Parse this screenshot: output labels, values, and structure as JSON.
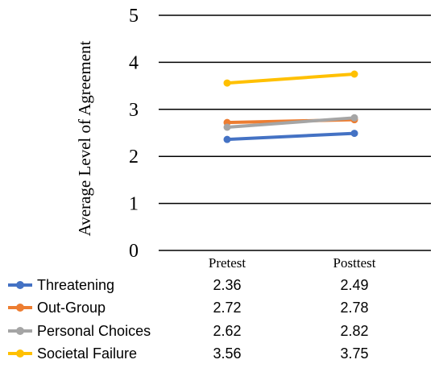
{
  "chart_data": {
    "type": "line",
    "categories": [
      "Pretest",
      "Posttest"
    ],
    "ylabel": "Average Level of Agreement",
    "xlabel": "",
    "ylim": [
      0,
      5
    ],
    "yticks": [
      "0",
      "1",
      "2",
      "3",
      "4",
      "5"
    ],
    "grid": true,
    "legend": "data-table-bottom",
    "series": [
      {
        "name": "Threatening",
        "values": [
          2.36,
          2.49
        ],
        "labels": [
          "2.36",
          "2.49"
        ],
        "color": "#4472C4"
      },
      {
        "name": "Out-Group",
        "values": [
          2.72,
          2.78
        ],
        "labels": [
          "2.72",
          "2.78"
        ],
        "color": "#ED7D31"
      },
      {
        "name": "Personal Choices",
        "values": [
          2.62,
          2.82
        ],
        "labels": [
          "2.62",
          "2.82"
        ],
        "color": "#A5A5A5"
      },
      {
        "name": "Societal Failure",
        "values": [
          3.56,
          3.75
        ],
        "labels": [
          "3.56",
          "3.75"
        ],
        "color": "#FFC000"
      }
    ]
  }
}
